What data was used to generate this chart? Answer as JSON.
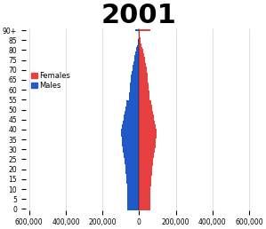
{
  "title": "2001",
  "title_fontsize": 22,
  "title_fontweight": "bold",
  "age_labels": [
    "0",
    "5",
    "10",
    "15",
    "20",
    "25",
    "30",
    "35",
    "40",
    "45",
    "50",
    "55",
    "60",
    "65",
    "70",
    "75",
    "80",
    "85",
    "90+"
  ],
  "age_tick_positions": [
    0,
    5,
    10,
    15,
    20,
    25,
    30,
    35,
    40,
    45,
    50,
    55,
    60,
    65,
    70,
    75,
    80,
    85,
    90
  ],
  "males_by_year": [
    66000,
    65500,
    65000,
    64500,
    64000,
    63500,
    63000,
    63500,
    64000,
    64500,
    65500,
    66000,
    67000,
    68000,
    69000,
    70000,
    71000,
    72000,
    73000,
    74000,
    75000,
    76000,
    77000,
    78000,
    79000,
    80000,
    82000,
    84000,
    86000,
    88000,
    90000,
    91000,
    92000,
    93000,
    94000,
    95000,
    96000,
    97000,
    98000,
    98000,
    97000,
    95000,
    93000,
    90000,
    88000,
    86000,
    84000,
    82000,
    80000,
    78000,
    76000,
    74000,
    72000,
    70000,
    68000,
    56000,
    55000,
    54000,
    53000,
    52000,
    51000,
    50000,
    49000,
    48000,
    47000,
    46000,
    45000,
    44000,
    43000,
    42000,
    38000,
    36000,
    34000,
    32000,
    30000,
    28000,
    26000,
    24000,
    22000,
    20000,
    17000,
    15000,
    12000,
    9000,
    7000,
    5000,
    4000,
    3000,
    2000,
    2000,
    22000
  ],
  "females_by_year": [
    63000,
    62500,
    62000,
    61500,
    61000,
    60500,
    60000,
    60500,
    61000,
    61500,
    62500,
    63000,
    64000,
    65000,
    66000,
    67000,
    68000,
    69000,
    70000,
    71000,
    72000,
    73000,
    74000,
    75000,
    76000,
    77000,
    79000,
    81000,
    83000,
    85000,
    87000,
    88000,
    89000,
    90000,
    91000,
    92000,
    93000,
    94000,
    95000,
    95000,
    94000,
    92000,
    90000,
    87000,
    85000,
    83000,
    81000,
    79000,
    77000,
    75000,
    73000,
    71000,
    69000,
    67000,
    65000,
    58000,
    57000,
    56000,
    55000,
    54000,
    53000,
    52000,
    51000,
    50000,
    49000,
    48000,
    47000,
    46000,
    45000,
    44000,
    42000,
    40000,
    38000,
    36000,
    34000,
    32000,
    30000,
    28000,
    26000,
    24000,
    21000,
    18000,
    15000,
    12000,
    10000,
    8000,
    6000,
    5000,
    4000,
    3000,
    60000
  ],
  "male_color": "#1f5ac8",
  "female_color": "#e84040",
  "xlim": 620000,
  "bar_height": 1.0,
  "ylabel_fontsize": 5.5,
  "xlabel_fontsize": 5.5,
  "legend_fontsize": 6,
  "background_color": "#ffffff",
  "grid_color": "#c8c8c8"
}
